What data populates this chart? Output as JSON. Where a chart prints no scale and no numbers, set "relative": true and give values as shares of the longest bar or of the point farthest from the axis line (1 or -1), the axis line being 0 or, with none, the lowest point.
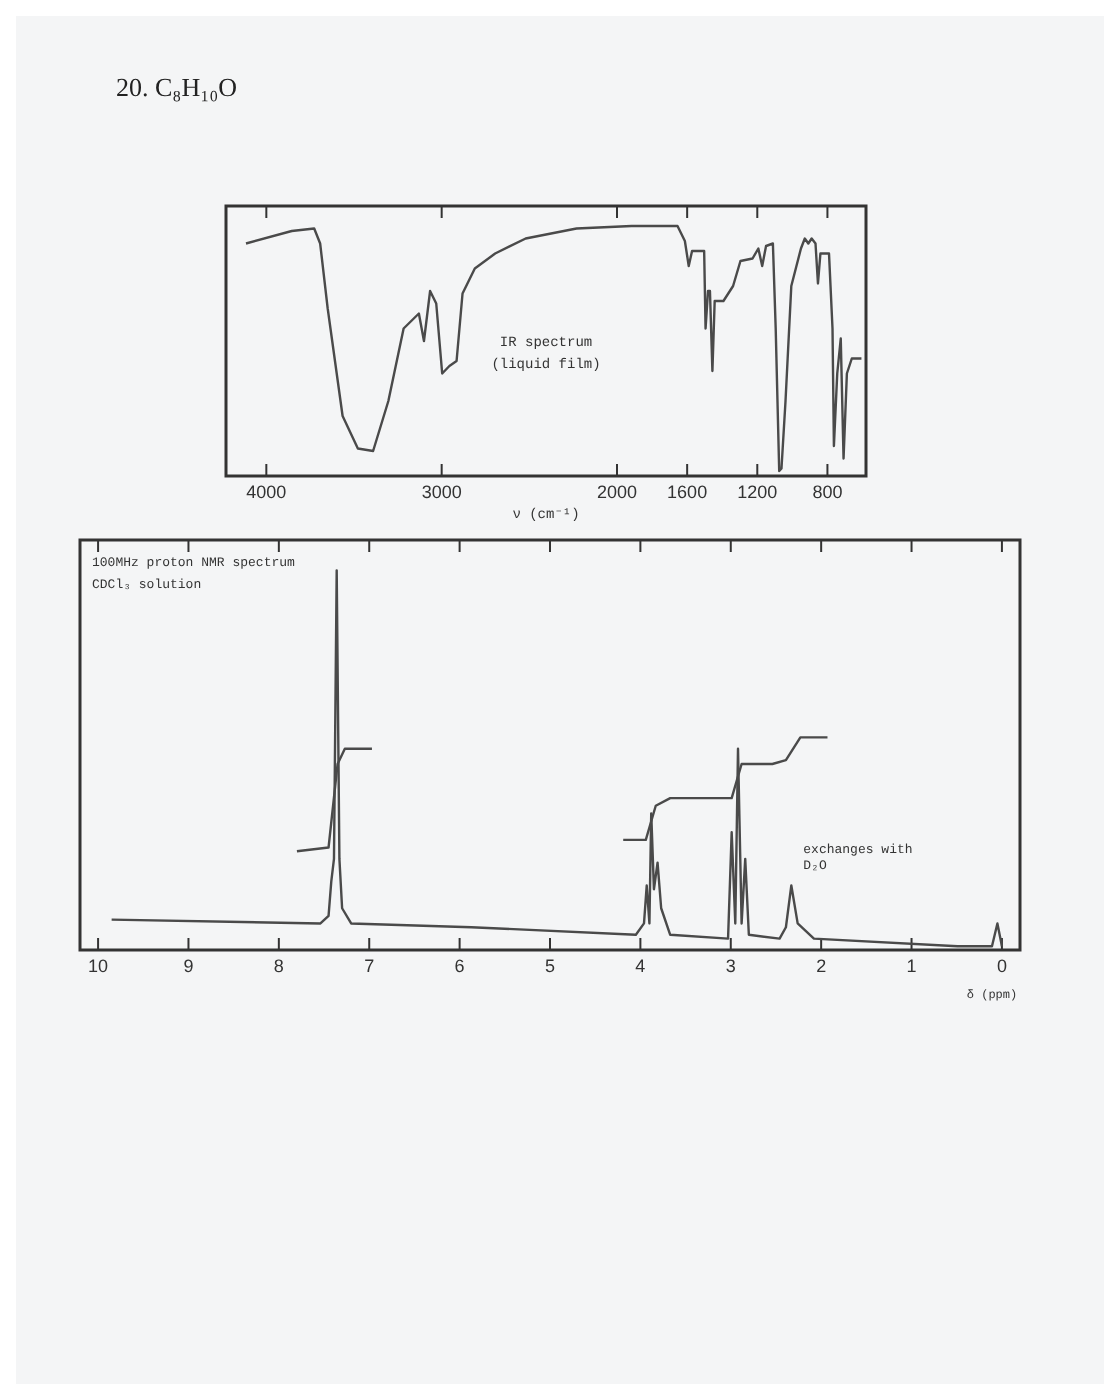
{
  "chart_data": [
    {
      "type": "line",
      "title": "20.  C₈H₁₀O",
      "relative": true,
      "xlabel": "ν (cm⁻¹)",
      "xlim": [
        4230,
        580
      ],
      "xticks": [
        4000,
        3000,
        2000,
        1600,
        1200,
        800
      ],
      "annotations": [
        "IR spectrum",
        "(liquid film)"
      ],
      "grid": false,
      "marker": "none",
      "line_style": "solid",
      "series": [
        {
          "color": "#4a4a4a",
          "x": [
            4116,
            3855,
            3727,
            3693,
            3650,
            3565,
            3478,
            3391,
            3304,
            3217,
            3130,
            3101,
            3066,
            3031,
            2997,
            2956,
            2915,
            2881,
            2811,
            2695,
            2521,
            2231,
            1917,
            1655,
            1613,
            1591,
            1572,
            1503,
            1495,
            1481,
            1470,
            1456,
            1443,
            1393,
            1338,
            1296,
            1227,
            1194,
            1172,
            1150,
            1111,
            1095,
            1075,
            1062,
            1039,
            1006,
            951,
            929,
            909,
            890,
            868,
            854,
            840,
            791,
            771,
            763,
            744,
            724,
            708,
            689,
            661,
            606
          ],
          "values": [
            0.93,
            0.98,
            0.99,
            0.93,
            0.67,
            0.24,
            0.11,
            0.1,
            0.3,
            0.59,
            0.65,
            0.54,
            0.74,
            0.69,
            0.41,
            0.44,
            0.46,
            0.73,
            0.83,
            0.89,
            0.95,
            0.99,
            1,
            1,
            0.94,
            0.84,
            0.9,
            0.9,
            0.59,
            0.74,
            0.74,
            0.42,
            0.7,
            0.7,
            0.76,
            0.86,
            0.87,
            0.91,
            0.84,
            0.92,
            0.93,
            0.59,
            0.02,
            0.03,
            0.3,
            0.76,
            0.91,
            0.95,
            0.93,
            0.95,
            0.93,
            0.77,
            0.89,
            0.89,
            0.59,
            0.12,
            0.41,
            0.55,
            0.07,
            0.41,
            0.47,
            0.47
          ]
        }
      ]
    },
    {
      "type": "line",
      "relative": true,
      "xlabel": "δ (ppm)",
      "xlim": [
        10.2,
        -0.2
      ],
      "xticks": [
        10,
        9,
        8,
        7,
        6,
        5,
        4,
        3,
        2,
        1,
        0
      ],
      "annotations": [
        "100MHz proton NMR spectrum",
        "CDCl₃ solution",
        {
          "text": "exchanges with D₂O",
          "x": 2.33,
          "y": 0.17
        }
      ],
      "grid": false,
      "marker": "none",
      "line_style": "solid",
      "series": [
        {
          "color": "#4a4a4a",
          "x": [
            9.85,
            7.54,
            7.45,
            7.42,
            7.39,
            7.36,
            7.33,
            7.3,
            7.2,
            5.87,
            4.05,
            3.96,
            3.93,
            3.9,
            3.88,
            3.85,
            3.81,
            3.77,
            3.67,
            3.03,
            2.99,
            2.95,
            2.92,
            2.88,
            2.84,
            2.8,
            2.46,
            2.39,
            2.33,
            2.26,
            2.08,
            0.49,
            0.11,
            0.05,
            0.0
          ],
          "values": [
            0.08,
            0.07,
            0.09,
            0.18,
            0.24,
            1,
            0.24,
            0.11,
            0.07,
            0.06,
            0.04,
            0.07,
            0.17,
            0.07,
            0.36,
            0.16,
            0.23,
            0.11,
            0.04,
            0.03,
            0.31,
            0.07,
            0.53,
            0.07,
            0.24,
            0.04,
            0.03,
            0.06,
            0.17,
            0.07,
            0.03,
            0.01,
            0.01,
            0.07,
            0.01
          ]
        },
        {
          "color": "#4a4a4a",
          "x": [
            7.8,
            7.45,
            7.35,
            7.27,
            6.97,
            5,
            4.19,
            3.94,
            3.83,
            3.67,
            2.99,
            2.88,
            2.54,
            2.39,
            2.23,
            1.93
          ],
          "values": [
            0.26,
            0.27,
            0.49,
            0.53,
            0.53,
            null,
            0.29,
            0.29,
            0.38,
            0.4,
            0.4,
            0.49,
            0.49,
            0.5,
            0.56,
            0.56
          ]
        }
      ]
    }
  ]
}
